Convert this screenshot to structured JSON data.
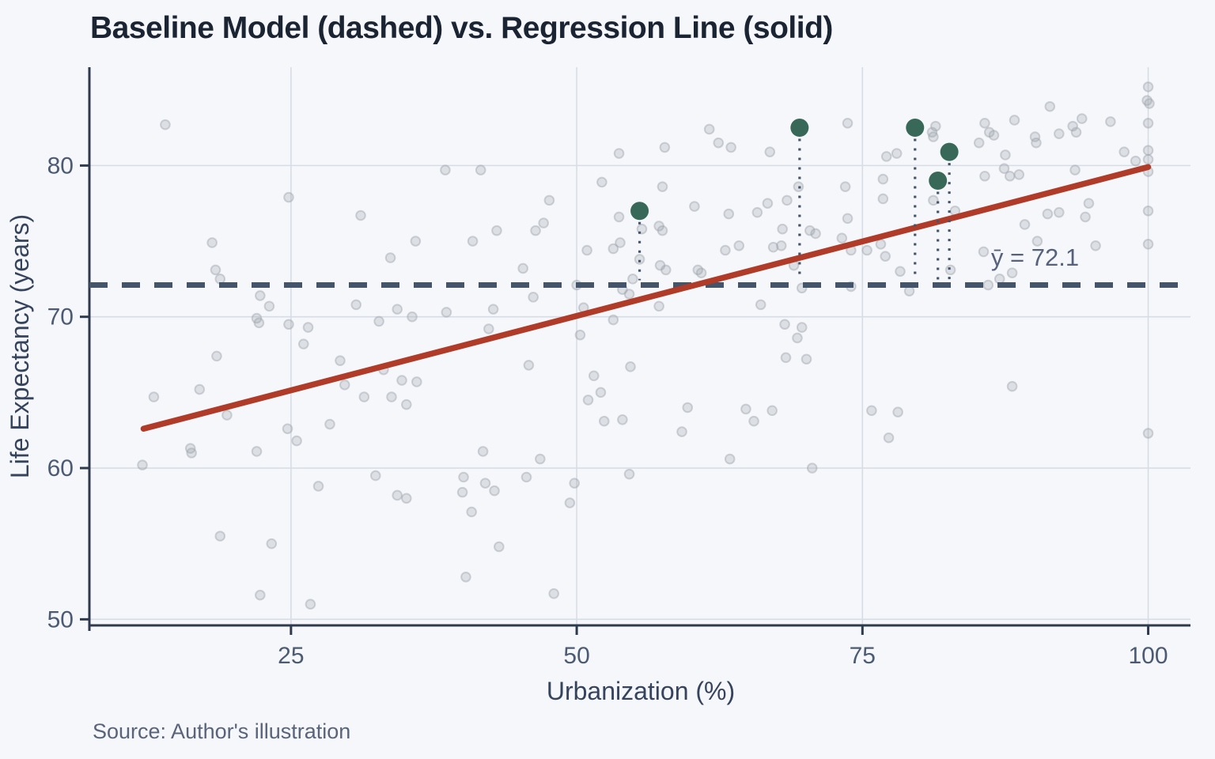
{
  "header": {
    "title": "Baseline Model (dashed) vs. Regression Line (solid)"
  },
  "footer": {
    "source": "Source: Author's illustration"
  },
  "chart_data": {
    "type": "scatter",
    "title": "Baseline Model (dashed) vs. Regression Line (solid)",
    "xlabel": "Urbanization (%)",
    "ylabel": "Life Expectancy (years)",
    "xlim": [
      7.5,
      103.7
    ],
    "ylim": [
      49.6,
      86.5
    ],
    "x_ticks": [
      25,
      50,
      75,
      100
    ],
    "y_ticks": [
      50,
      60,
      70,
      80
    ],
    "grid": true,
    "legend_position": "none",
    "baseline": {
      "value": 72.1,
      "label": "ȳ = 72.1",
      "label_x": 90.1,
      "label_y": 73.9
    },
    "regression": {
      "x1": 12.1,
      "y1": 62.6,
      "x2": 100.0,
      "y2": 79.9
    },
    "highlighted_points": [
      [
        55.5,
        77.0
      ],
      [
        69.5,
        82.5
      ],
      [
        79.6,
        82.5
      ],
      [
        81.6,
        79.0
      ],
      [
        82.6,
        80.9
      ]
    ],
    "points": [
      [
        14,
        82.7
      ],
      [
        24.8,
        77.9
      ],
      [
        31.1,
        76.7
      ],
      [
        18.1,
        74.9
      ],
      [
        18.4,
        73.1
      ],
      [
        18.8,
        72.5
      ],
      [
        22.3,
        71.4
      ],
      [
        23.1,
        70.7
      ],
      [
        22,
        69.9
      ],
      [
        22.2,
        69.6
      ],
      [
        24.8,
        69.5
      ],
      [
        26.5,
        69.3
      ],
      [
        26.1,
        68.2
      ],
      [
        30.7,
        70.8
      ],
      [
        53.7,
        80.8
      ],
      [
        38.5,
        79.7
      ],
      [
        41.6,
        79.7
      ],
      [
        52.2,
        78.9
      ],
      [
        47.6,
        77.7
      ],
      [
        53.7,
        76.6
      ],
      [
        47.1,
        76.2
      ],
      [
        46.4,
        75.7
      ],
      [
        43,
        75.7
      ],
      [
        40.9,
        75
      ],
      [
        35.9,
        75
      ],
      [
        50.9,
        74.4
      ],
      [
        53.2,
        74.5
      ],
      [
        53.8,
        74.9
      ],
      [
        55.5,
        73.8
      ],
      [
        33.7,
        73.9
      ],
      [
        45.3,
        73.2
      ],
      [
        54.9,
        72.5
      ],
      [
        50,
        72.1
      ],
      [
        54,
        71.8
      ],
      [
        54.6,
        71.5
      ],
      [
        46.2,
        71.3
      ],
      [
        34.3,
        70.5
      ],
      [
        35.6,
        70
      ],
      [
        38.6,
        70.3
      ],
      [
        42.7,
        70.5
      ],
      [
        50.6,
        70.6
      ],
      [
        53.2,
        69.8
      ],
      [
        32.7,
        69.7
      ],
      [
        42.3,
        69.2
      ],
      [
        50.3,
        68.8
      ],
      [
        73.7,
        82.8
      ],
      [
        61.6,
        82.4
      ],
      [
        62.4,
        81.5
      ],
      [
        63.5,
        81.2
      ],
      [
        57.7,
        81.2
      ],
      [
        66.9,
        80.9
      ],
      [
        77.1,
        80.6
      ],
      [
        78,
        80.8
      ],
      [
        57.5,
        78.6
      ],
      [
        69.4,
        78.6
      ],
      [
        73.5,
        78.6
      ],
      [
        76.8,
        79.1
      ],
      [
        76.8,
        77.8
      ],
      [
        60.3,
        77.3
      ],
      [
        66.7,
        77.5
      ],
      [
        68.4,
        77.7
      ],
      [
        63.3,
        76.8
      ],
      [
        65.8,
        76.9
      ],
      [
        57.2,
        76
      ],
      [
        57.5,
        75.7
      ],
      [
        55.7,
        75.8
      ],
      [
        73.7,
        76.5
      ],
      [
        73.2,
        75.2
      ],
      [
        74,
        74.4
      ],
      [
        68,
        75.8
      ],
      [
        70.4,
        75.7
      ],
      [
        70.9,
        75.5
      ],
      [
        67.2,
        74.6
      ],
      [
        67.9,
        74.7
      ],
      [
        63,
        74.4
      ],
      [
        64.2,
        74.7
      ],
      [
        75.4,
        74.4
      ],
      [
        76.6,
        74.8
      ],
      [
        77,
        74
      ],
      [
        57.3,
        73.4
      ],
      [
        57.8,
        73.1
      ],
      [
        60.6,
        73.1
      ],
      [
        60.9,
        72.9
      ],
      [
        69,
        73.4
      ],
      [
        78.3,
        73
      ],
      [
        69.7,
        71.9
      ],
      [
        74,
        72
      ],
      [
        79.1,
        71.7
      ],
      [
        57.2,
        70.7
      ],
      [
        66.1,
        70.8
      ],
      [
        68.2,
        69.5
      ],
      [
        69.7,
        69.3
      ],
      [
        69.3,
        68.6
      ],
      [
        100,
        85.2
      ],
      [
        99.9,
        84.3
      ],
      [
        100.1,
        84.1
      ],
      [
        91.4,
        83.9
      ],
      [
        88.3,
        83
      ],
      [
        94.2,
        83.1
      ],
      [
        93.4,
        82.6
      ],
      [
        96.7,
        82.9
      ],
      [
        100,
        82.8
      ],
      [
        85.7,
        82.8
      ],
      [
        86.1,
        82.2
      ],
      [
        86.5,
        82
      ],
      [
        81.4,
        82.6
      ],
      [
        81.1,
        82.2
      ],
      [
        81.2,
        81.9
      ],
      [
        85.2,
        81.5
      ],
      [
        90.1,
        81.9
      ],
      [
        90.2,
        81.5
      ],
      [
        92.2,
        82.1
      ],
      [
        93.7,
        82.2
      ],
      [
        87.5,
        80.7
      ],
      [
        100,
        81
      ],
      [
        100,
        80.4
      ],
      [
        100,
        79.6
      ],
      [
        98.9,
        80.3
      ],
      [
        97.9,
        80.9
      ],
      [
        87.4,
        79.8
      ],
      [
        85.7,
        79.3
      ],
      [
        87.9,
        79.3
      ],
      [
        88.7,
        79.4
      ],
      [
        93.6,
        79.7
      ],
      [
        81.2,
        77.7
      ],
      [
        83.1,
        77
      ],
      [
        94.8,
        77.5
      ],
      [
        100,
        77
      ],
      [
        91.2,
        76.8
      ],
      [
        92.2,
        76.9
      ],
      [
        94.5,
        76.6
      ],
      [
        89.2,
        76.1
      ],
      [
        90.3,
        75
      ],
      [
        95.4,
        74.7
      ],
      [
        100,
        74.8
      ],
      [
        85.6,
        74.3
      ],
      [
        82.7,
        73.1
      ],
      [
        88.1,
        72.9
      ],
      [
        87,
        72.5
      ],
      [
        86,
        72.1
      ],
      [
        18.5,
        67.4
      ],
      [
        29.3,
        67.1
      ],
      [
        13,
        64.7
      ],
      [
        17,
        65.2
      ],
      [
        29.7,
        65.5
      ],
      [
        31.4,
        64.7
      ],
      [
        19.4,
        63.5
      ],
      [
        24.7,
        62.6
      ],
      [
        25.5,
        61.8
      ],
      [
        28.4,
        62.9
      ],
      [
        16.2,
        61.3
      ],
      [
        16.3,
        61
      ],
      [
        22,
        61.1
      ],
      [
        12,
        60.2
      ],
      [
        27.4,
        58.8
      ],
      [
        18.8,
        55.5
      ],
      [
        23.3,
        55
      ],
      [
        22.3,
        51.6
      ],
      [
        26.7,
        51
      ],
      [
        33.1,
        66.5
      ],
      [
        34.7,
        65.8
      ],
      [
        36,
        65.7
      ],
      [
        33.8,
        64.7
      ],
      [
        35.1,
        64.2
      ],
      [
        45.8,
        66.8
      ],
      [
        51.5,
        66.1
      ],
      [
        54.7,
        66.7
      ],
      [
        52.1,
        65
      ],
      [
        51,
        64.5
      ],
      [
        52.4,
        63.1
      ],
      [
        54,
        63.2
      ],
      [
        41.8,
        61.1
      ],
      [
        46.8,
        60.6
      ],
      [
        32.4,
        59.5
      ],
      [
        54.6,
        59.6
      ],
      [
        40.1,
        59.4
      ],
      [
        45.6,
        59.4
      ],
      [
        42,
        59
      ],
      [
        49.8,
        59
      ],
      [
        40,
        58.4
      ],
      [
        42.8,
        58.5
      ],
      [
        34.3,
        58.2
      ],
      [
        35.1,
        58
      ],
      [
        49.4,
        57.7
      ],
      [
        40.8,
        57.1
      ],
      [
        43.2,
        54.8
      ],
      [
        40.3,
        52.8
      ],
      [
        48,
        51.7
      ],
      [
        68.3,
        67.3
      ],
      [
        70.1,
        67.2
      ],
      [
        59.7,
        64
      ],
      [
        64.8,
        63.9
      ],
      [
        65.5,
        63.1
      ],
      [
        67.1,
        63.8
      ],
      [
        59.2,
        62.4
      ],
      [
        75.8,
        63.8
      ],
      [
        78.1,
        63.7
      ],
      [
        77.3,
        62
      ],
      [
        63.4,
        60.6
      ],
      [
        70.6,
        60
      ],
      [
        88.1,
        65.4
      ],
      [
        100,
        62.3
      ]
    ],
    "colors": {
      "background": "#f5f7fa",
      "grid": "#d8dde5",
      "axis": "#2e3a4e",
      "tick_text": "#4c5b73",
      "axis_title": "#35435c",
      "title_text": "#1b2432",
      "scatter": "#9aa0a9",
      "regression": "#b03b28",
      "baseline": "#44546a",
      "highlight": "#386958",
      "annotation": "#56627c",
      "source_text": "#59647b"
    }
  }
}
